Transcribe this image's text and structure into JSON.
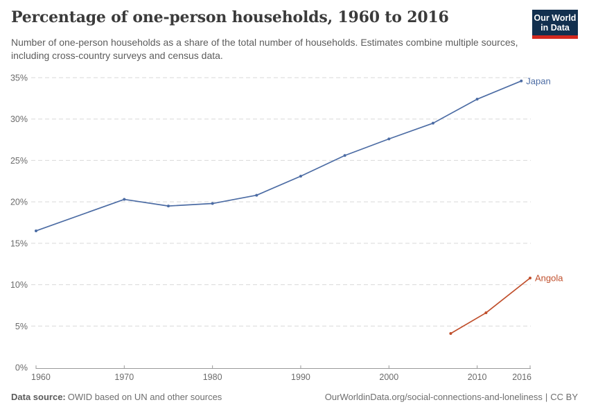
{
  "header": {
    "title": "Percentage of one-person households, 1960 to 2016",
    "subtitle": "Number of one-person households as a share of the total number of households. Estimates combine multiple sources, including cross-country surveys and census data."
  },
  "logo": {
    "line1": "Our World",
    "line2": "in Data"
  },
  "chart_data": {
    "type": "line",
    "title": "Percentage of one-person households, 1960 to 2016",
    "xlabel": "",
    "ylabel": "",
    "xlim": [
      1960,
      2016
    ],
    "ylim": [
      0,
      35
    ],
    "x_ticks": [
      1960,
      1970,
      1980,
      1990,
      2000,
      2010,
      2016
    ],
    "y_ticks": [
      0,
      5,
      10,
      15,
      20,
      25,
      30,
      35
    ],
    "y_tick_suffix": "%",
    "grid": "horizontal-dashed",
    "legend_position": "line-end-labels",
    "series": [
      {
        "name": "Japan",
        "color": "#4C6CA4",
        "x": [
          1960,
          1970,
          1975,
          1980,
          1985,
          1990,
          1995,
          2000,
          2005,
          2010,
          2015
        ],
        "values": [
          16.5,
          20.3,
          19.5,
          19.8,
          20.8,
          23.1,
          25.6,
          27.6,
          29.5,
          32.4,
          34.6
        ]
      },
      {
        "name": "Angola",
        "color": "#C04F2C",
        "x": [
          2007,
          2011,
          2016
        ],
        "values": [
          4.1,
          6.6,
          10.8
        ]
      }
    ]
  },
  "footer": {
    "source_label": "Data source:",
    "source_text": "OWID based on UN and other sources",
    "link_text": "OurWorldinData.org/social-connections-and-loneliness",
    "divider": "|",
    "license_text": "CC BY"
  },
  "colors": {
    "title": "#3b3b3b",
    "subtitle": "#5c5c5c",
    "tick_label": "#6b6b6b",
    "grid": "#d9d9d9",
    "axis": "#9a9a9a",
    "footer_text": "#6e6e6e",
    "logo_bg": "#12304F",
    "logo_accent": "#D3281E"
  }
}
